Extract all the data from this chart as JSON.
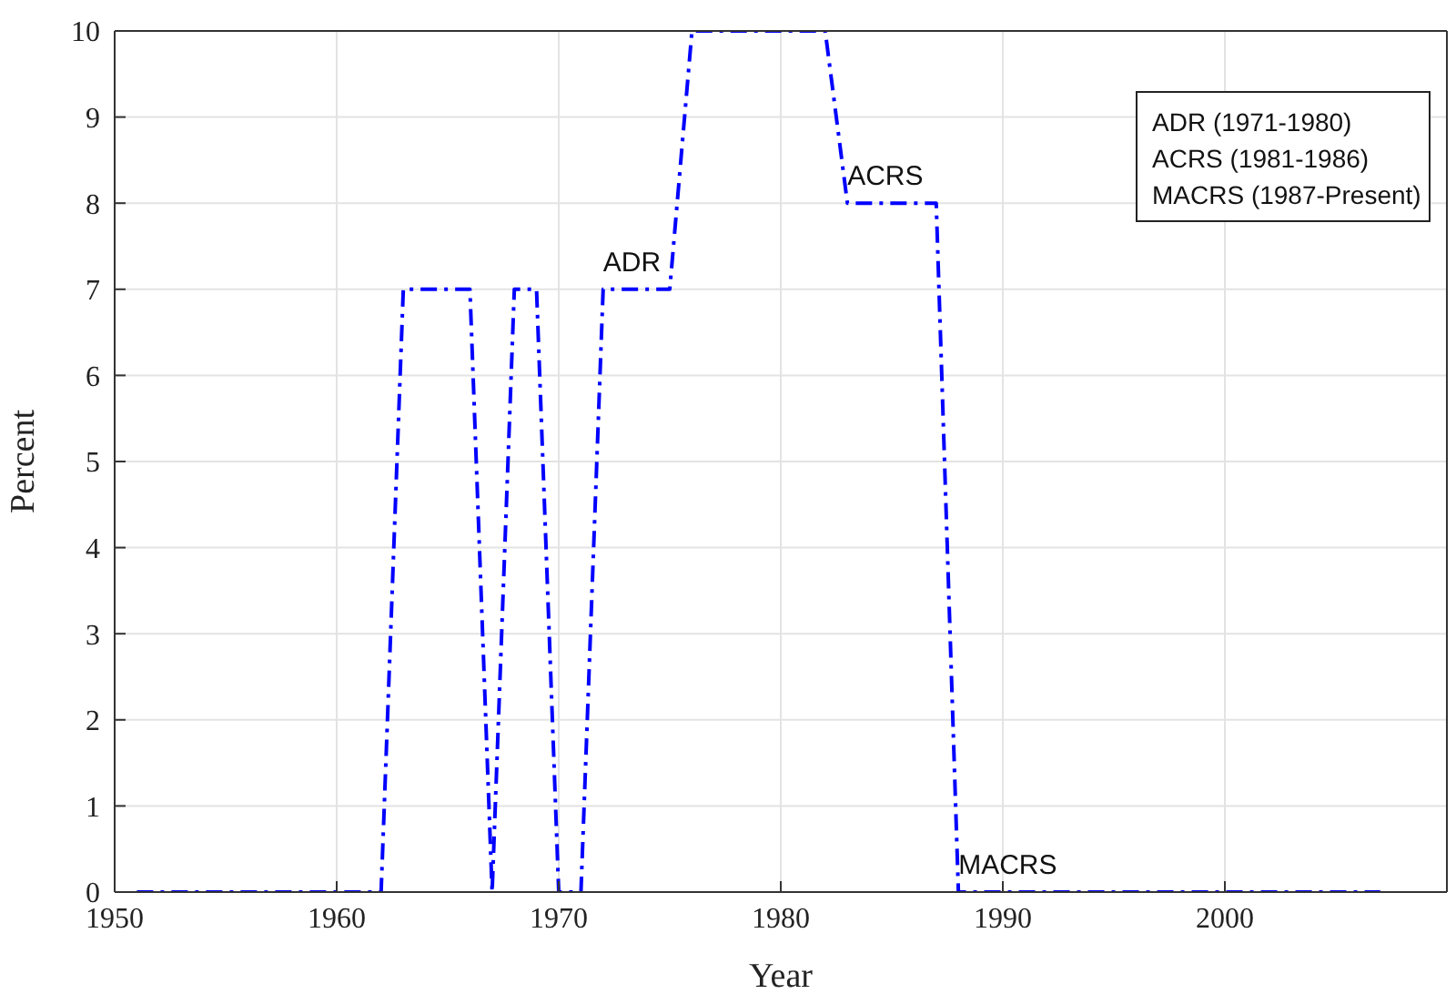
{
  "chart_data": {
    "type": "line",
    "xlabel": "Year",
    "ylabel": "Percent",
    "x": [
      1951,
      1952,
      1953,
      1954,
      1955,
      1956,
      1957,
      1958,
      1959,
      1960,
      1961,
      1962,
      1963,
      1964,
      1965,
      1966,
      1967,
      1968,
      1969,
      1970,
      1971,
      1972,
      1973,
      1974,
      1975,
      1976,
      1977,
      1978,
      1979,
      1980,
      1981,
      1982,
      1983,
      1984,
      1985,
      1986,
      1987,
      1988,
      1989,
      1990,
      1991,
      1992,
      1993,
      1994,
      1995,
      1996,
      1997,
      1998,
      1999,
      2000,
      2001,
      2002,
      2003,
      2004,
      2005,
      2006,
      2007
    ],
    "series": [
      {
        "color": "#0000ff",
        "values": [
          0,
          0,
          0,
          0,
          0,
          0,
          0,
          0,
          0,
          0,
          0,
          0,
          7,
          7,
          7,
          7,
          0,
          7,
          7,
          0,
          0,
          7,
          7,
          7,
          7,
          10,
          10,
          10,
          10,
          10,
          10,
          10,
          8,
          8,
          8,
          8,
          8,
          0,
          0,
          0,
          0,
          0,
          0,
          0,
          0,
          0,
          0,
          0,
          0,
          0,
          0,
          0,
          0,
          0,
          0,
          0,
          0
        ]
      }
    ],
    "line_style": "dashdot",
    "marker": "none",
    "xlim": [
      1950,
      2010
    ],
    "xticks": [
      1950,
      1960,
      1970,
      1980,
      1990,
      2000
    ],
    "ylim": [
      0,
      10
    ],
    "yticks": [
      0,
      1,
      2,
      3,
      4,
      5,
      6,
      7,
      8,
      9,
      10
    ],
    "grid": true,
    "annotations": [
      {
        "text": "ADR",
        "x": 1972,
        "y": 7
      },
      {
        "text": "ACRS",
        "x": 1983,
        "y": 8
      },
      {
        "text": "MACRS",
        "x": 1988,
        "y": 0
      },
      "ADR (1971-1980)",
      "ACRS (1981-1986)",
      "MACRS (1987-Present)"
    ]
  }
}
